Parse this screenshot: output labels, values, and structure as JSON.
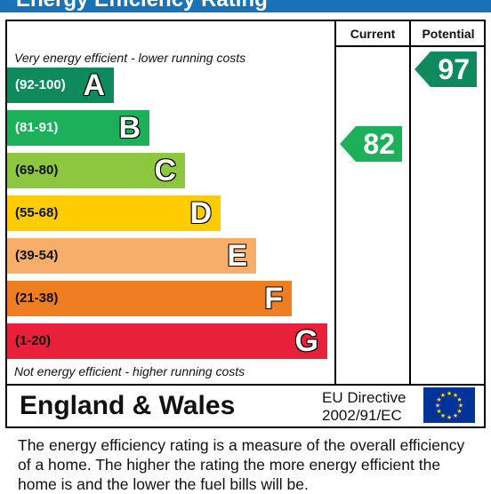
{
  "title": "Energy Efficiency Rating",
  "columns": {
    "current": "Current",
    "potential": "Potential"
  },
  "top_note": "Very energy efficient - lower running costs",
  "bottom_note": "Not energy efficient - higher running costs",
  "chart_data": {
    "type": "bar",
    "title": "Energy Efficiency Rating",
    "categories": [
      "A",
      "B",
      "C",
      "D",
      "E",
      "F",
      "G"
    ],
    "bands": [
      {
        "letter": "A",
        "range": "(92-100)",
        "color": "#0f8a5c",
        "text_color": "#ffffff"
      },
      {
        "letter": "B",
        "range": "(81-91)",
        "color": "#1db05b",
        "text_color": "#ffffff"
      },
      {
        "letter": "C",
        "range": "(69-80)",
        "color": "#8dc63f",
        "text_color": "#111111"
      },
      {
        "letter": "D",
        "range": "(55-68)",
        "color": "#ffcc00",
        "text_color": "#111111"
      },
      {
        "letter": "E",
        "range": "(39-54)",
        "color": "#f7ae6b",
        "text_color": "#111111"
      },
      {
        "letter": "F",
        "range": "(21-38)",
        "color": "#ef7d22",
        "text_color": "#111111"
      },
      {
        "letter": "G",
        "range": "(1-20)",
        "color": "#e8203a",
        "text_color": "#111111"
      }
    ],
    "current": {
      "value": 82,
      "band": "B",
      "color": "#1db05b"
    },
    "potential": {
      "value": 97,
      "band": "A",
      "color": "#0f8a5c"
    }
  },
  "footer": {
    "region": "England & Wales",
    "directive_line1": "EU Directive",
    "directive_line2": "2002/91/EC"
  },
  "description": "The energy efficiency rating is a measure of the overall efficiency of a home.  The higher the rating the more energy efficient the home is and the lower the fuel bills will be."
}
